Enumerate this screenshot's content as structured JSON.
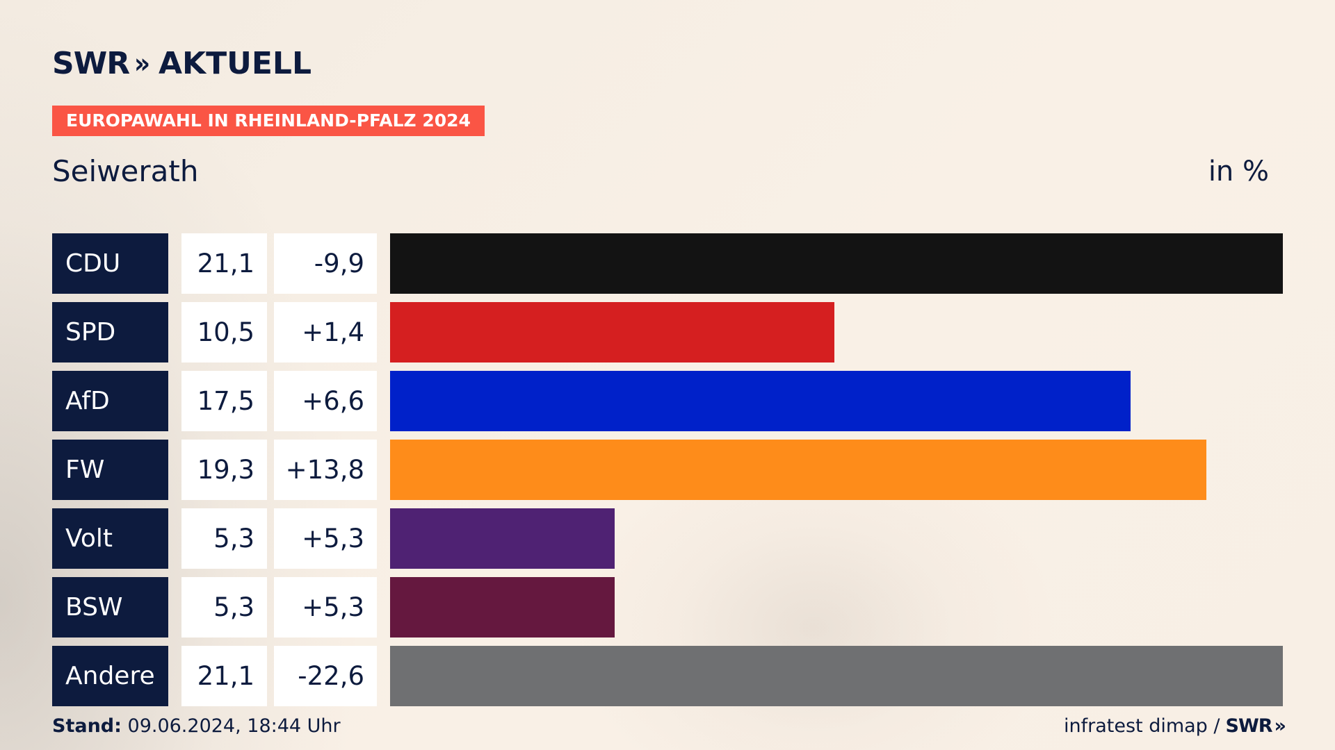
{
  "brand": {
    "logo_text": "SWR",
    "logo_chevrons": "»",
    "logo_word": "AKTUELL"
  },
  "tag": "EUROPAWAHL IN RHEINLAND-PFALZ 2024",
  "place": "Seiwerath",
  "unit": "in %",
  "footer": {
    "stand_label": "Stand:",
    "stand_value": "09.06.2024, 18:44 Uhr",
    "source": "infratest dimap /",
    "source_logo": "SWR",
    "source_chevrons": "»"
  },
  "colors": {
    "background": "#f6eee4",
    "navy": "#0d1b3e",
    "tag": "#fa5545"
  },
  "chart_data": {
    "type": "bar",
    "orientation": "horizontal",
    "categories": [
      "CDU",
      "SPD",
      "AfD",
      "FW",
      "Volt",
      "BSW",
      "Andere"
    ],
    "values": [
      21.1,
      10.5,
      17.5,
      19.3,
      5.3,
      5.3,
      21.1
    ],
    "values_text": [
      "21,1",
      "10,5",
      "17,5",
      "19,3",
      "5,3",
      "5,3",
      "21,1"
    ],
    "diffs_text": [
      "-9,9",
      "+1,4",
      "+6,6",
      "+13,8",
      "+5,3",
      "+5,3",
      "-22,6"
    ],
    "colors": [
      "#131313",
      "#d51f20",
      "#0021c9",
      "#fe8c1a",
      "#4f2273",
      "#65183f",
      "#6f7072"
    ],
    "xlim": [
      0,
      21.1
    ],
    "grid": false
  }
}
